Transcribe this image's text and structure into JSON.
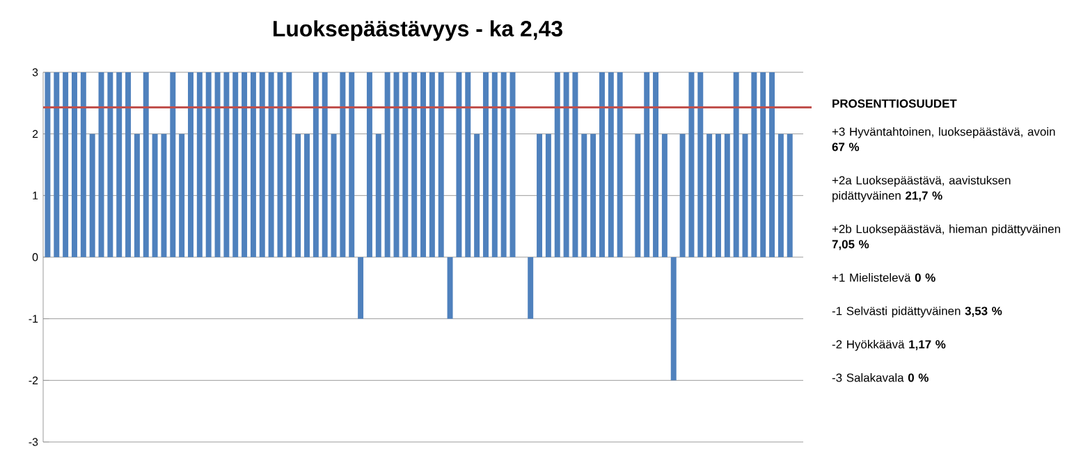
{
  "chart_data": {
    "type": "bar",
    "title": "Luoksepäästävyys -  ka 2,43",
    "categories": [
      null,
      null,
      null,
      null,
      null,
      null,
      null,
      null,
      null,
      null,
      null,
      null,
      null,
      null,
      null,
      null,
      null,
      null,
      null,
      null,
      null,
      null,
      null,
      null,
      null,
      null,
      null,
      null,
      null,
      null,
      null,
      null,
      null,
      null,
      null,
      null,
      null,
      null,
      null,
      null,
      null,
      null,
      null,
      null,
      null,
      null,
      null,
      null,
      null,
      null,
      null,
      null,
      null,
      null,
      null,
      null,
      null,
      null,
      null,
      null,
      null,
      null,
      null,
      null,
      null,
      null,
      null,
      null,
      null,
      null,
      null,
      null,
      null,
      null,
      null,
      null,
      null,
      null,
      null,
      null,
      null,
      null,
      null,
      null,
      null
    ],
    "values": [
      3,
      3,
      3,
      3,
      3,
      2,
      3,
      3,
      3,
      3,
      2,
      3,
      2,
      2,
      3,
      2,
      3,
      3,
      3,
      3,
      3,
      3,
      3,
      3,
      3,
      3,
      3,
      3,
      2,
      2,
      3,
      3,
      2,
      3,
      3,
      -1,
      3,
      2,
      3,
      3,
      3,
      3,
      3,
      3,
      3,
      -1,
      3,
      3,
      2,
      3,
      3,
      3,
      3,
      null,
      -1,
      2,
      2,
      3,
      3,
      3,
      2,
      2,
      3,
      3,
      3,
      null,
      2,
      3,
      3,
      2,
      -2,
      2,
      3,
      3,
      2,
      2,
      2,
      3,
      2,
      3,
      3,
      3,
      2,
      2,
      null
    ],
    "color": "#4f81bd",
    "ylim": [
      -3,
      3
    ],
    "yticks": [
      -3,
      -2,
      -1,
      0,
      1,
      2,
      3
    ],
    "grid": "y",
    "ref_lines": [
      {
        "axis": "y",
        "value": 2.43,
        "color": "#c0504d"
      }
    ],
    "annotations": [
      "PROSENTTIOSUUDET",
      "+3 Hyväntahtoinen, luoksepäästävä, avoin **67 %**",
      "+2a Luoksepäästävä, aavistuksen pidättyväinen **21,7 %**",
      "+2b Luoksepäästävä, hieman pidättyväinen **7,05 %**",
      "+1 Mielistelevä **0 %**",
      "-1 Selvästi pidättyväinen **3,53 %**",
      "-2 Hyökkäävä **1,17 %**",
      "-3 Salakavala **0 %**"
    ]
  }
}
